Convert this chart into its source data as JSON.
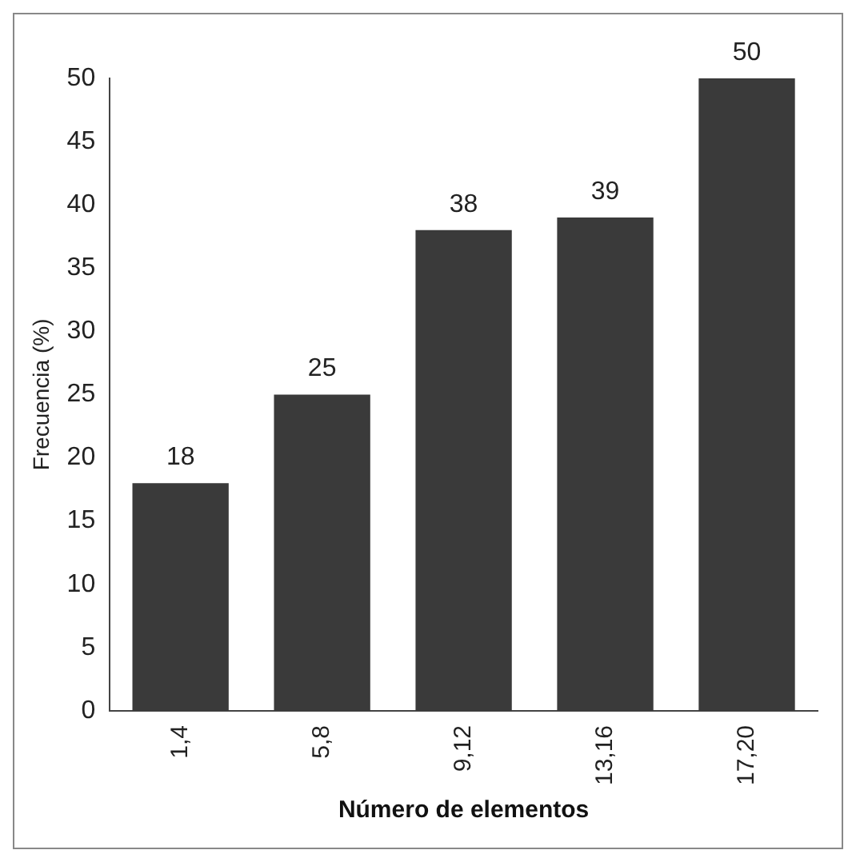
{
  "chart_data": {
    "type": "bar",
    "xlabel": "Número de elementos",
    "ylabel": "Frecuencia (%)",
    "categories": [
      "1,4",
      "5,8",
      "9,12",
      "13,16",
      "17,20"
    ],
    "values": [
      18,
      25,
      38,
      39,
      50
    ],
    "color": "#3a3a3a",
    "ylim": [
      0,
      50
    ],
    "yticks": [
      0,
      5,
      10,
      15,
      20,
      25,
      30,
      35,
      40,
      45,
      50
    ],
    "grid": false,
    "legend": false,
    "data_labels": true
  }
}
